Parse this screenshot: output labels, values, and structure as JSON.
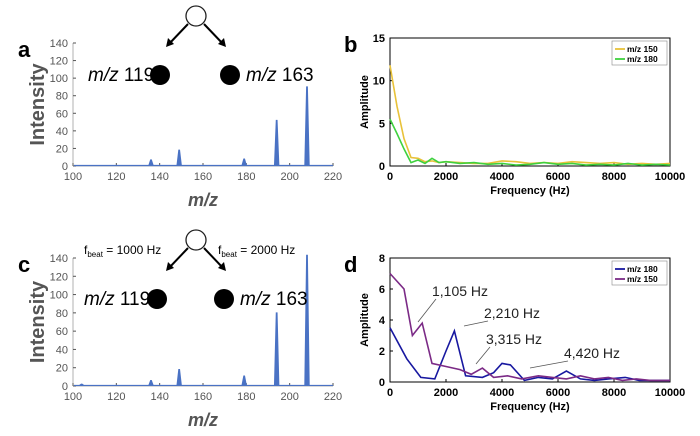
{
  "colors": {
    "spectrum": "#4a72c4",
    "yellow": "#e8c23a",
    "green": "#3fd13f",
    "navy": "#1818a0",
    "purple": "#7b2a86"
  },
  "chart_data": [
    {
      "id": "a",
      "panel_label": "a",
      "type": "line",
      "ylabel": "Intensity",
      "xlabel": "m/z",
      "xlim": [
        100,
        220
      ],
      "ylim": [
        0,
        140
      ],
      "xticks": [
        100,
        120,
        140,
        160,
        180,
        200,
        220
      ],
      "yticks": [
        0,
        20,
        40,
        60,
        80,
        100,
        120,
        140
      ],
      "peaks": [
        {
          "mz": 136,
          "intensity": 7
        },
        {
          "mz": 149,
          "intensity": 18
        },
        {
          "mz": 179,
          "intensity": 8
        },
        {
          "mz": 194,
          "intensity": 52
        },
        {
          "mz": 208,
          "intensity": 90
        }
      ],
      "diagram": {
        "ions": [
          {
            "prefix": "m/z",
            "value": "119"
          },
          {
            "prefix": "m/z",
            "value": "163"
          }
        ]
      }
    },
    {
      "id": "b",
      "panel_label": "b",
      "type": "line",
      "ylabel": "Amplitude",
      "xlabel": "Frequency (Hz)",
      "xlim": [
        0,
        10000
      ],
      "ylim": [
        0,
        15
      ],
      "xticks": [
        0,
        2000,
        4000,
        6000,
        8000,
        10000
      ],
      "yticks": [
        0,
        5,
        10,
        15
      ],
      "legend_position": "top-right",
      "series": [
        {
          "name": "m/z 150",
          "color_key": "yellow",
          "x": [
            0,
            250,
            500,
            750,
            1000,
            1250,
            1500,
            1750,
            2000,
            2500,
            3000,
            3500,
            4000,
            4500,
            5000,
            5500,
            6000,
            6500,
            7000,
            7500,
            8000,
            8500,
            9000,
            9500,
            10000
          ],
          "y": [
            11.8,
            7.0,
            3.2,
            1.0,
            0.9,
            0.5,
            0.6,
            0.4,
            0.5,
            0.4,
            0.3,
            0.3,
            0.6,
            0.5,
            0.3,
            0.4,
            0.3,
            0.5,
            0.4,
            0.3,
            0.4,
            0.2,
            0.3,
            0.2,
            0.3
          ]
        },
        {
          "name": "m/z 180",
          "color_key": "green",
          "x": [
            0,
            250,
            500,
            750,
            1000,
            1250,
            1500,
            1750,
            2000,
            2500,
            3000,
            3500,
            4000,
            4500,
            5000,
            5500,
            6000,
            6500,
            7000,
            7500,
            8000,
            8500,
            9000,
            9500,
            10000
          ],
          "y": [
            5.5,
            3.8,
            2.0,
            0.4,
            0.7,
            0.3,
            0.9,
            0.4,
            0.5,
            0.3,
            0.4,
            0.2,
            0.3,
            0.1,
            0.2,
            0.4,
            0.2,
            0.3,
            0.1,
            0.2,
            0.1,
            0.3,
            0.1,
            0.2,
            0.1
          ]
        }
      ]
    },
    {
      "id": "c",
      "panel_label": "c",
      "type": "line",
      "ylabel": "Intensity",
      "xlabel": "m/z",
      "xlim": [
        100,
        220
      ],
      "ylim": [
        0,
        140
      ],
      "xticks": [
        100,
        120,
        140,
        160,
        180,
        200,
        220
      ],
      "yticks": [
        0,
        20,
        40,
        60,
        80,
        100,
        120,
        140
      ],
      "peaks": [
        {
          "mz": 104,
          "intensity": 2
        },
        {
          "mz": 136,
          "intensity": 6
        },
        {
          "mz": 149,
          "intensity": 18
        },
        {
          "mz": 179,
          "intensity": 11
        },
        {
          "mz": 194,
          "intensity": 80
        },
        {
          "mz": 208,
          "intensity": 143
        }
      ],
      "diagram": {
        "ions": [
          {
            "prefix": "m/z",
            "value": "119"
          },
          {
            "prefix": "m/z",
            "value": "163"
          }
        ],
        "beats": [
          {
            "f": "f",
            "sub": "beat",
            "rest": " = 1000 Hz"
          },
          {
            "f": "f",
            "sub": "beat",
            "rest": " = 2000 Hz"
          }
        ]
      }
    },
    {
      "id": "d",
      "panel_label": "d",
      "type": "line",
      "ylabel": "Amplitude",
      "xlabel": "Frequency (Hz)",
      "xlim": [
        0,
        10000
      ],
      "ylim": [
        0,
        8
      ],
      "xticks": [
        0,
        2000,
        4000,
        6000,
        8000,
        10000
      ],
      "yticks": [
        0,
        2,
        4,
        6,
        8
      ],
      "legend_position": "top-right",
      "series": [
        {
          "name": "m/z 180",
          "color_key": "navy",
          "x": [
            0,
            600,
            1100,
            1600,
            2000,
            2300,
            2700,
            3300,
            3700,
            4000,
            4300,
            4800,
            5300,
            5800,
            6300,
            6800,
            7300,
            7800,
            8400,
            8900,
            9400,
            10000
          ],
          "y": [
            3.5,
            1.5,
            0.3,
            0.2,
            2.0,
            3.3,
            0.4,
            0.3,
            0.6,
            1.2,
            1.1,
            0.1,
            0.3,
            0.2,
            0.7,
            0.2,
            0.1,
            0.2,
            0.3,
            0.1,
            0.1,
            0.1
          ]
        },
        {
          "name": "m/z 150",
          "color_key": "purple",
          "x": [
            0,
            500,
            800,
            1150,
            1500,
            2000,
            2500,
            2900,
            3300,
            3700,
            4200,
            4700,
            5300,
            5800,
            6300,
            6800,
            7300,
            7800,
            8300,
            8800,
            9300,
            10000
          ],
          "y": [
            7.0,
            6.0,
            3.0,
            3.8,
            1.2,
            1.0,
            0.8,
            0.5,
            0.9,
            0.3,
            0.4,
            0.2,
            0.4,
            0.3,
            0.2,
            0.4,
            0.2,
            0.3,
            0.1,
            0.2,
            0.1,
            0.1
          ]
        }
      ],
      "annotations": [
        {
          "text": "1,105 Hz",
          "x": 1105,
          "y": 3.8
        },
        {
          "text": "2,210 Hz",
          "x": 2210,
          "y": 3.3
        },
        {
          "text": "3,315 Hz",
          "x": 3315,
          "y": 0.9
        },
        {
          "text": "4,420 Hz",
          "x": 4420,
          "y": 0.9
        }
      ]
    }
  ]
}
